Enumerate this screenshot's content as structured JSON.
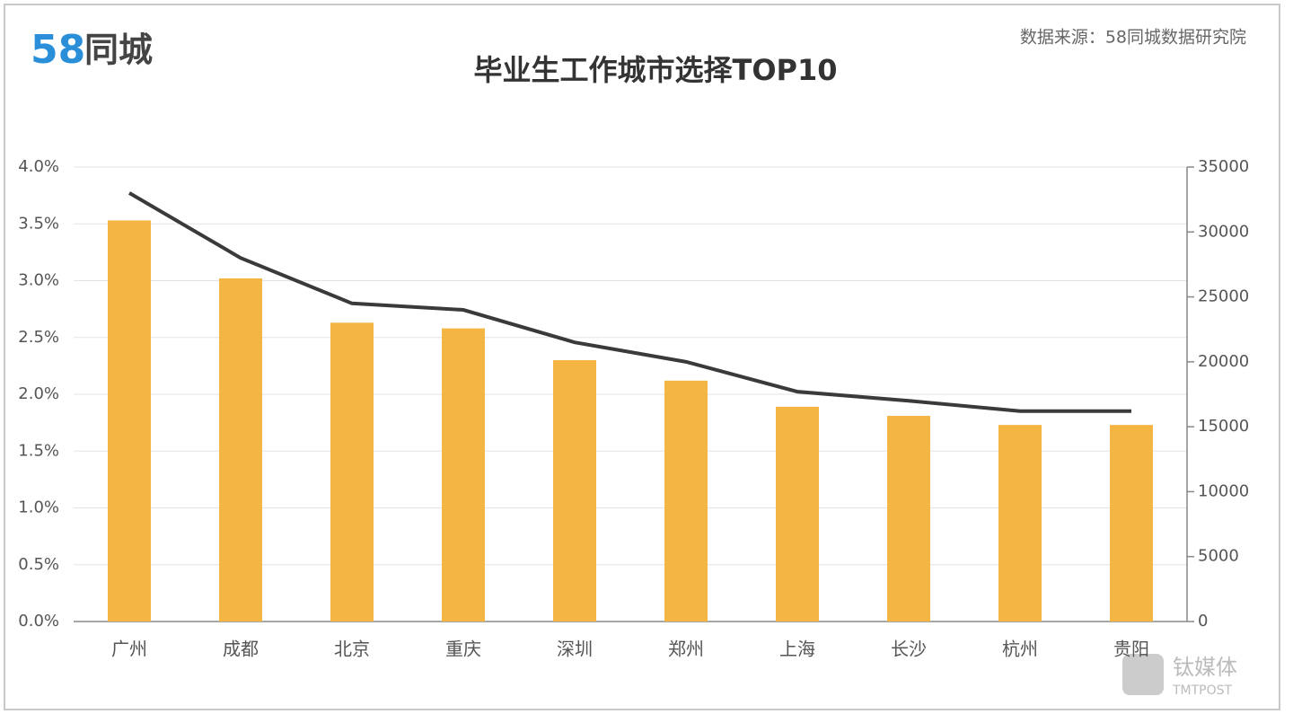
{
  "logo": {
    "number": "58",
    "name": "同城"
  },
  "source": "数据来源：58同城数据研究院",
  "watermark": {
    "name": "钛媒体",
    "brand": "TMTPOST"
  },
  "chart_data": {
    "type": "bar",
    "title": "毕业生工作城市选择TOP10",
    "categories": [
      "广州",
      "成都",
      "北京",
      "重庆",
      "深圳",
      "郑州",
      "上海",
      "长沙",
      "杭州",
      "贵阳"
    ],
    "series": [
      {
        "color": "#f4b543",
        "values": [
          3.53,
          3.02,
          2.63,
          2.58,
          2.3,
          2.12,
          1.89,
          1.81,
          1.73,
          1.73
        ]
      },
      {
        "type": "line",
        "axis": "y2",
        "color": "#3a3a3a",
        "values": [
          33000,
          28000,
          24500,
          24000,
          21500,
          20000,
          17700,
          17000,
          16200,
          16200
        ]
      }
    ],
    "ylim": [
      0,
      4
    ],
    "yticks": [
      {
        "value": 0,
        "label": "0.0%"
      },
      {
        "value": 0.5,
        "label": "0.5%"
      },
      {
        "value": 1,
        "label": "1.0%"
      },
      {
        "value": 1.5,
        "label": "1.5%"
      },
      {
        "value": 2,
        "label": "2.0%"
      },
      {
        "value": 2.5,
        "label": "2.5%"
      },
      {
        "value": 3,
        "label": "3.0%"
      },
      {
        "value": 3.5,
        "label": "3.5%"
      },
      {
        "value": 4,
        "label": "4.0%"
      }
    ],
    "y2lim": [
      0,
      35000
    ],
    "y2ticks": [
      0,
      5000,
      10000,
      15000,
      20000,
      25000,
      30000,
      35000
    ],
    "grid": true
  }
}
